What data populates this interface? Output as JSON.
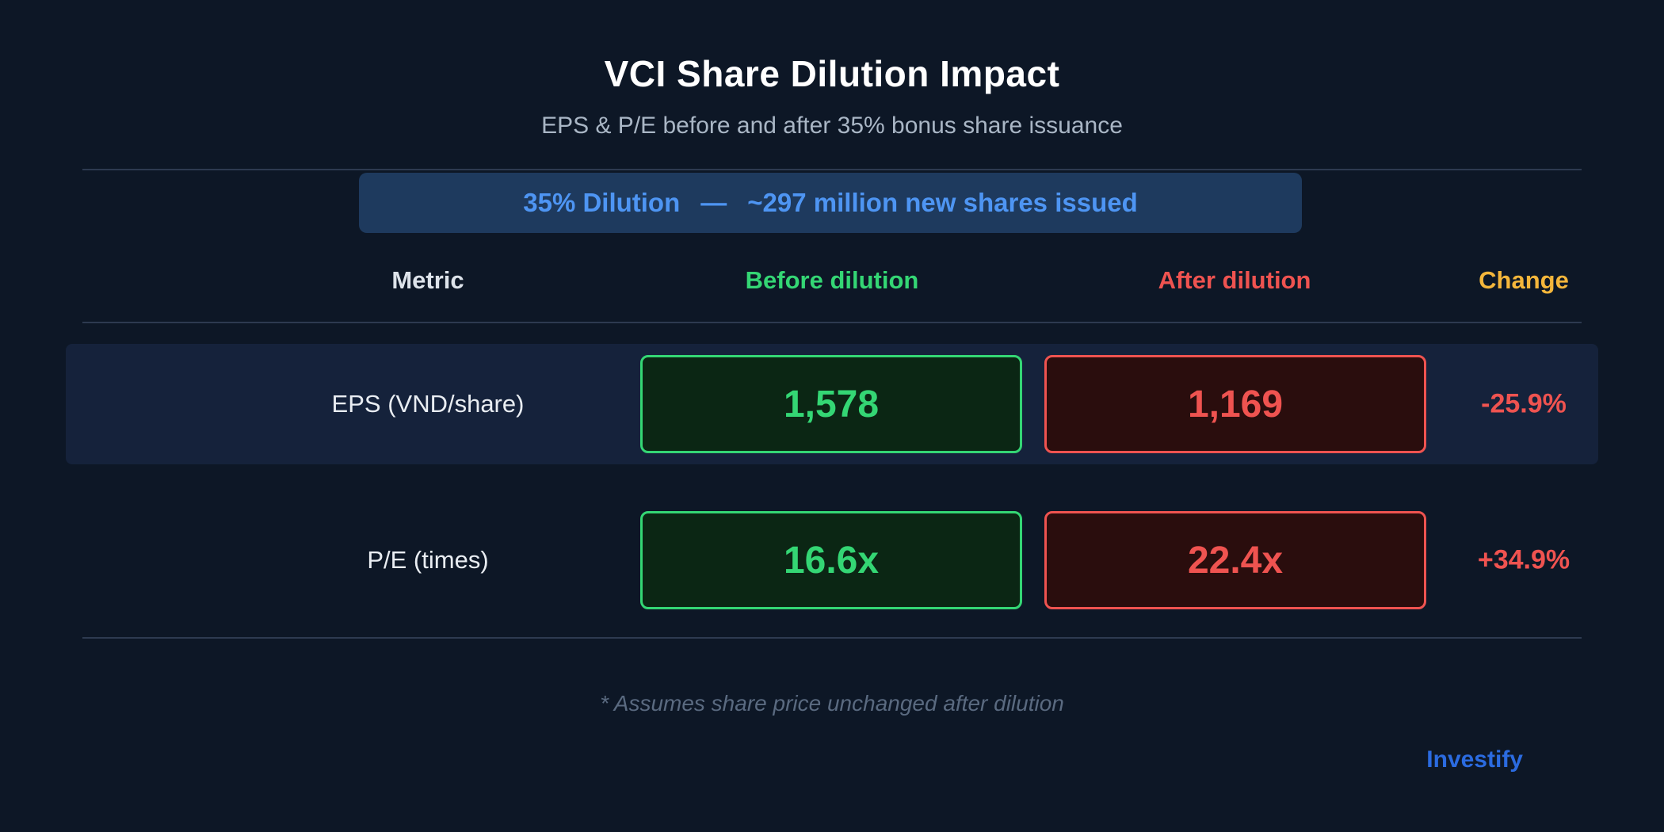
{
  "page": {
    "title": "VCI Share Dilution Impact",
    "subtitle": "EPS & P/E before and after 35% bonus share issuance",
    "footnote": "* Assumes share price unchanged after dilution",
    "brand": "Investify"
  },
  "banner": {
    "dilution_label": "35% Dilution",
    "separator": "—",
    "shares_label": "~297 million new shares issued"
  },
  "table": {
    "headers": {
      "metric": "Metric",
      "before": "Before dilution",
      "after": "After dilution",
      "change": "Change"
    },
    "rows": [
      {
        "metric": "EPS (VND/share)",
        "before": "1,578",
        "after": "1,169",
        "change": "-25.9%"
      },
      {
        "metric": "P/E (times)",
        "before": "16.6x",
        "after": "22.4x",
        "change": "+34.9%"
      }
    ]
  },
  "colors": {
    "background": "#0d1726",
    "row_highlight": "#15223b",
    "banner_background": "#1e3a5e",
    "banner_text": "#4e95f3",
    "before_green": "#34d674",
    "after_red": "#ef5350",
    "change_amber": "#f4b63b",
    "brand_blue": "#2b6be0"
  },
  "chart_data": {
    "type": "table",
    "title": "VCI Share Dilution Impact",
    "subtitle": "EPS & P/E before and after 35% bonus share issuance",
    "annotation": "35% Dilution — ~297 million new shares issued",
    "columns": [
      "Metric",
      "Before dilution",
      "After dilution",
      "Change"
    ],
    "rows": [
      [
        "EPS (VND/share)",
        1578,
        1169,
        -25.9
      ],
      [
        "P/E (times)",
        16.6,
        22.4,
        34.9
      ]
    ],
    "units": {
      "EPS (VND/share)": "VND/share",
      "P/E (times)": "times",
      "change": "%"
    },
    "footnote": "* Assumes share price unchanged after dilution",
    "source_brand": "Investify"
  }
}
